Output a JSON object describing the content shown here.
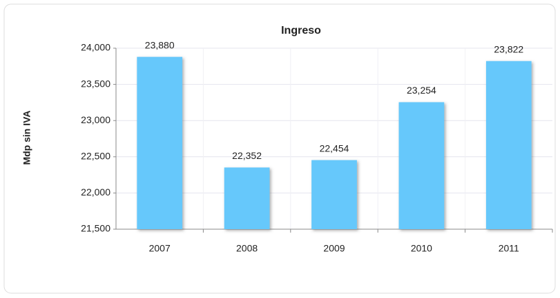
{
  "chart_data": {
    "type": "bar",
    "title": "Ingreso",
    "y_label": "Mdp sin IVA",
    "categories": [
      "2007",
      "2008",
      "2009",
      "2010",
      "2011"
    ],
    "values": [
      23880,
      22352,
      22454,
      23254,
      23822
    ],
    "value_labels": [
      "23,880",
      "22,352",
      "22,454",
      "23,254",
      "23,822"
    ],
    "color": "#66c8fb",
    "ylim": [
      21500,
      24000
    ],
    "yticks": [
      {
        "value": 21500,
        "label": "21,500"
      },
      {
        "value": 22000,
        "label": "22,000"
      },
      {
        "value": 22500,
        "label": "22,500"
      },
      {
        "value": 23000,
        "label": "23,000"
      },
      {
        "value": 23500,
        "label": "23,500"
      },
      {
        "value": 24000,
        "label": "24,000"
      }
    ],
    "grid": true
  }
}
